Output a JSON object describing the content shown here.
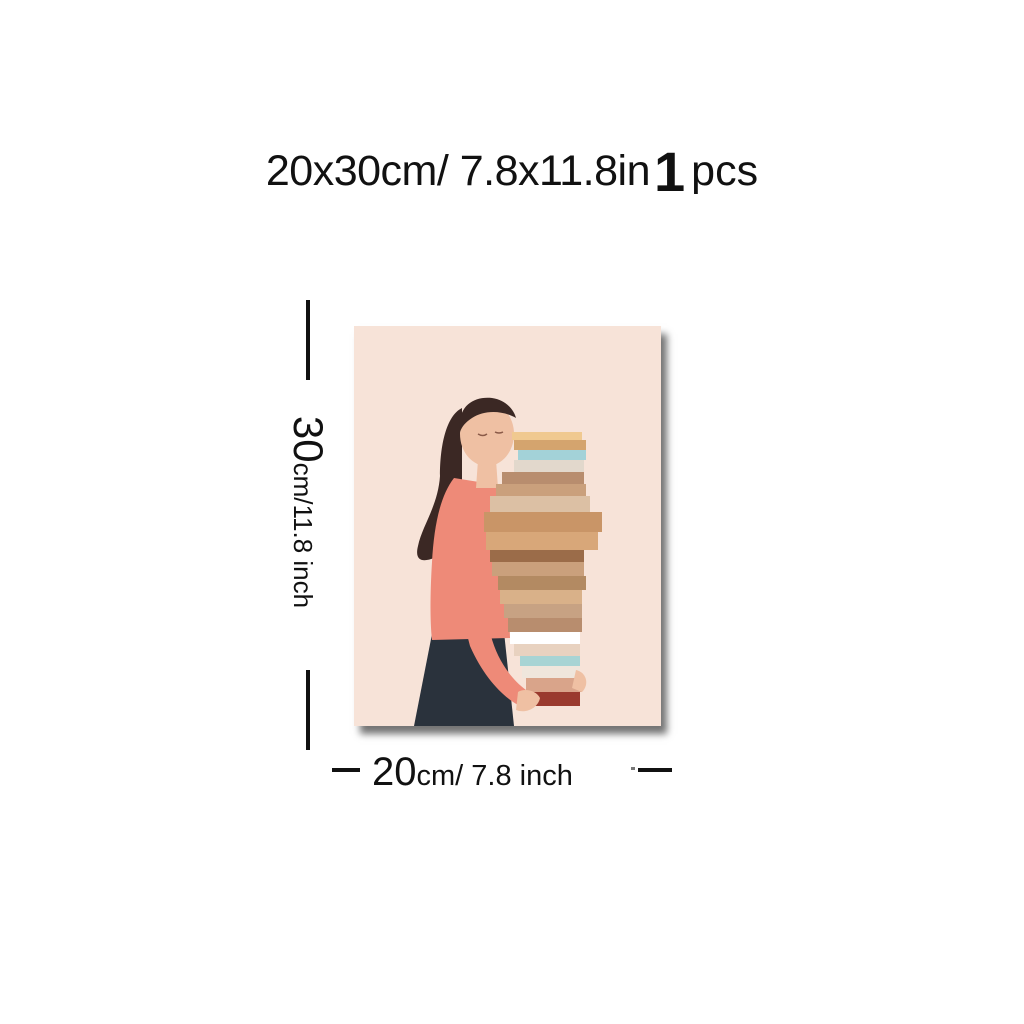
{
  "headline": {
    "size_text": "20x30cm/ 7.8x11.8in",
    "quantity": "1",
    "quantity_unit": "pcs"
  },
  "dimensions": {
    "height_value": "30",
    "height_text": "cm/11.8 inch",
    "width_value": "20",
    "width_text": "cm/ 7.8 inch"
  },
  "colors": {
    "poster_bg": "#f7e3d8",
    "sweater": "#ee8a78",
    "pants": "#2a323c",
    "hair": "#3b2824",
    "skin": "#efc0a3",
    "text": "#111111"
  }
}
